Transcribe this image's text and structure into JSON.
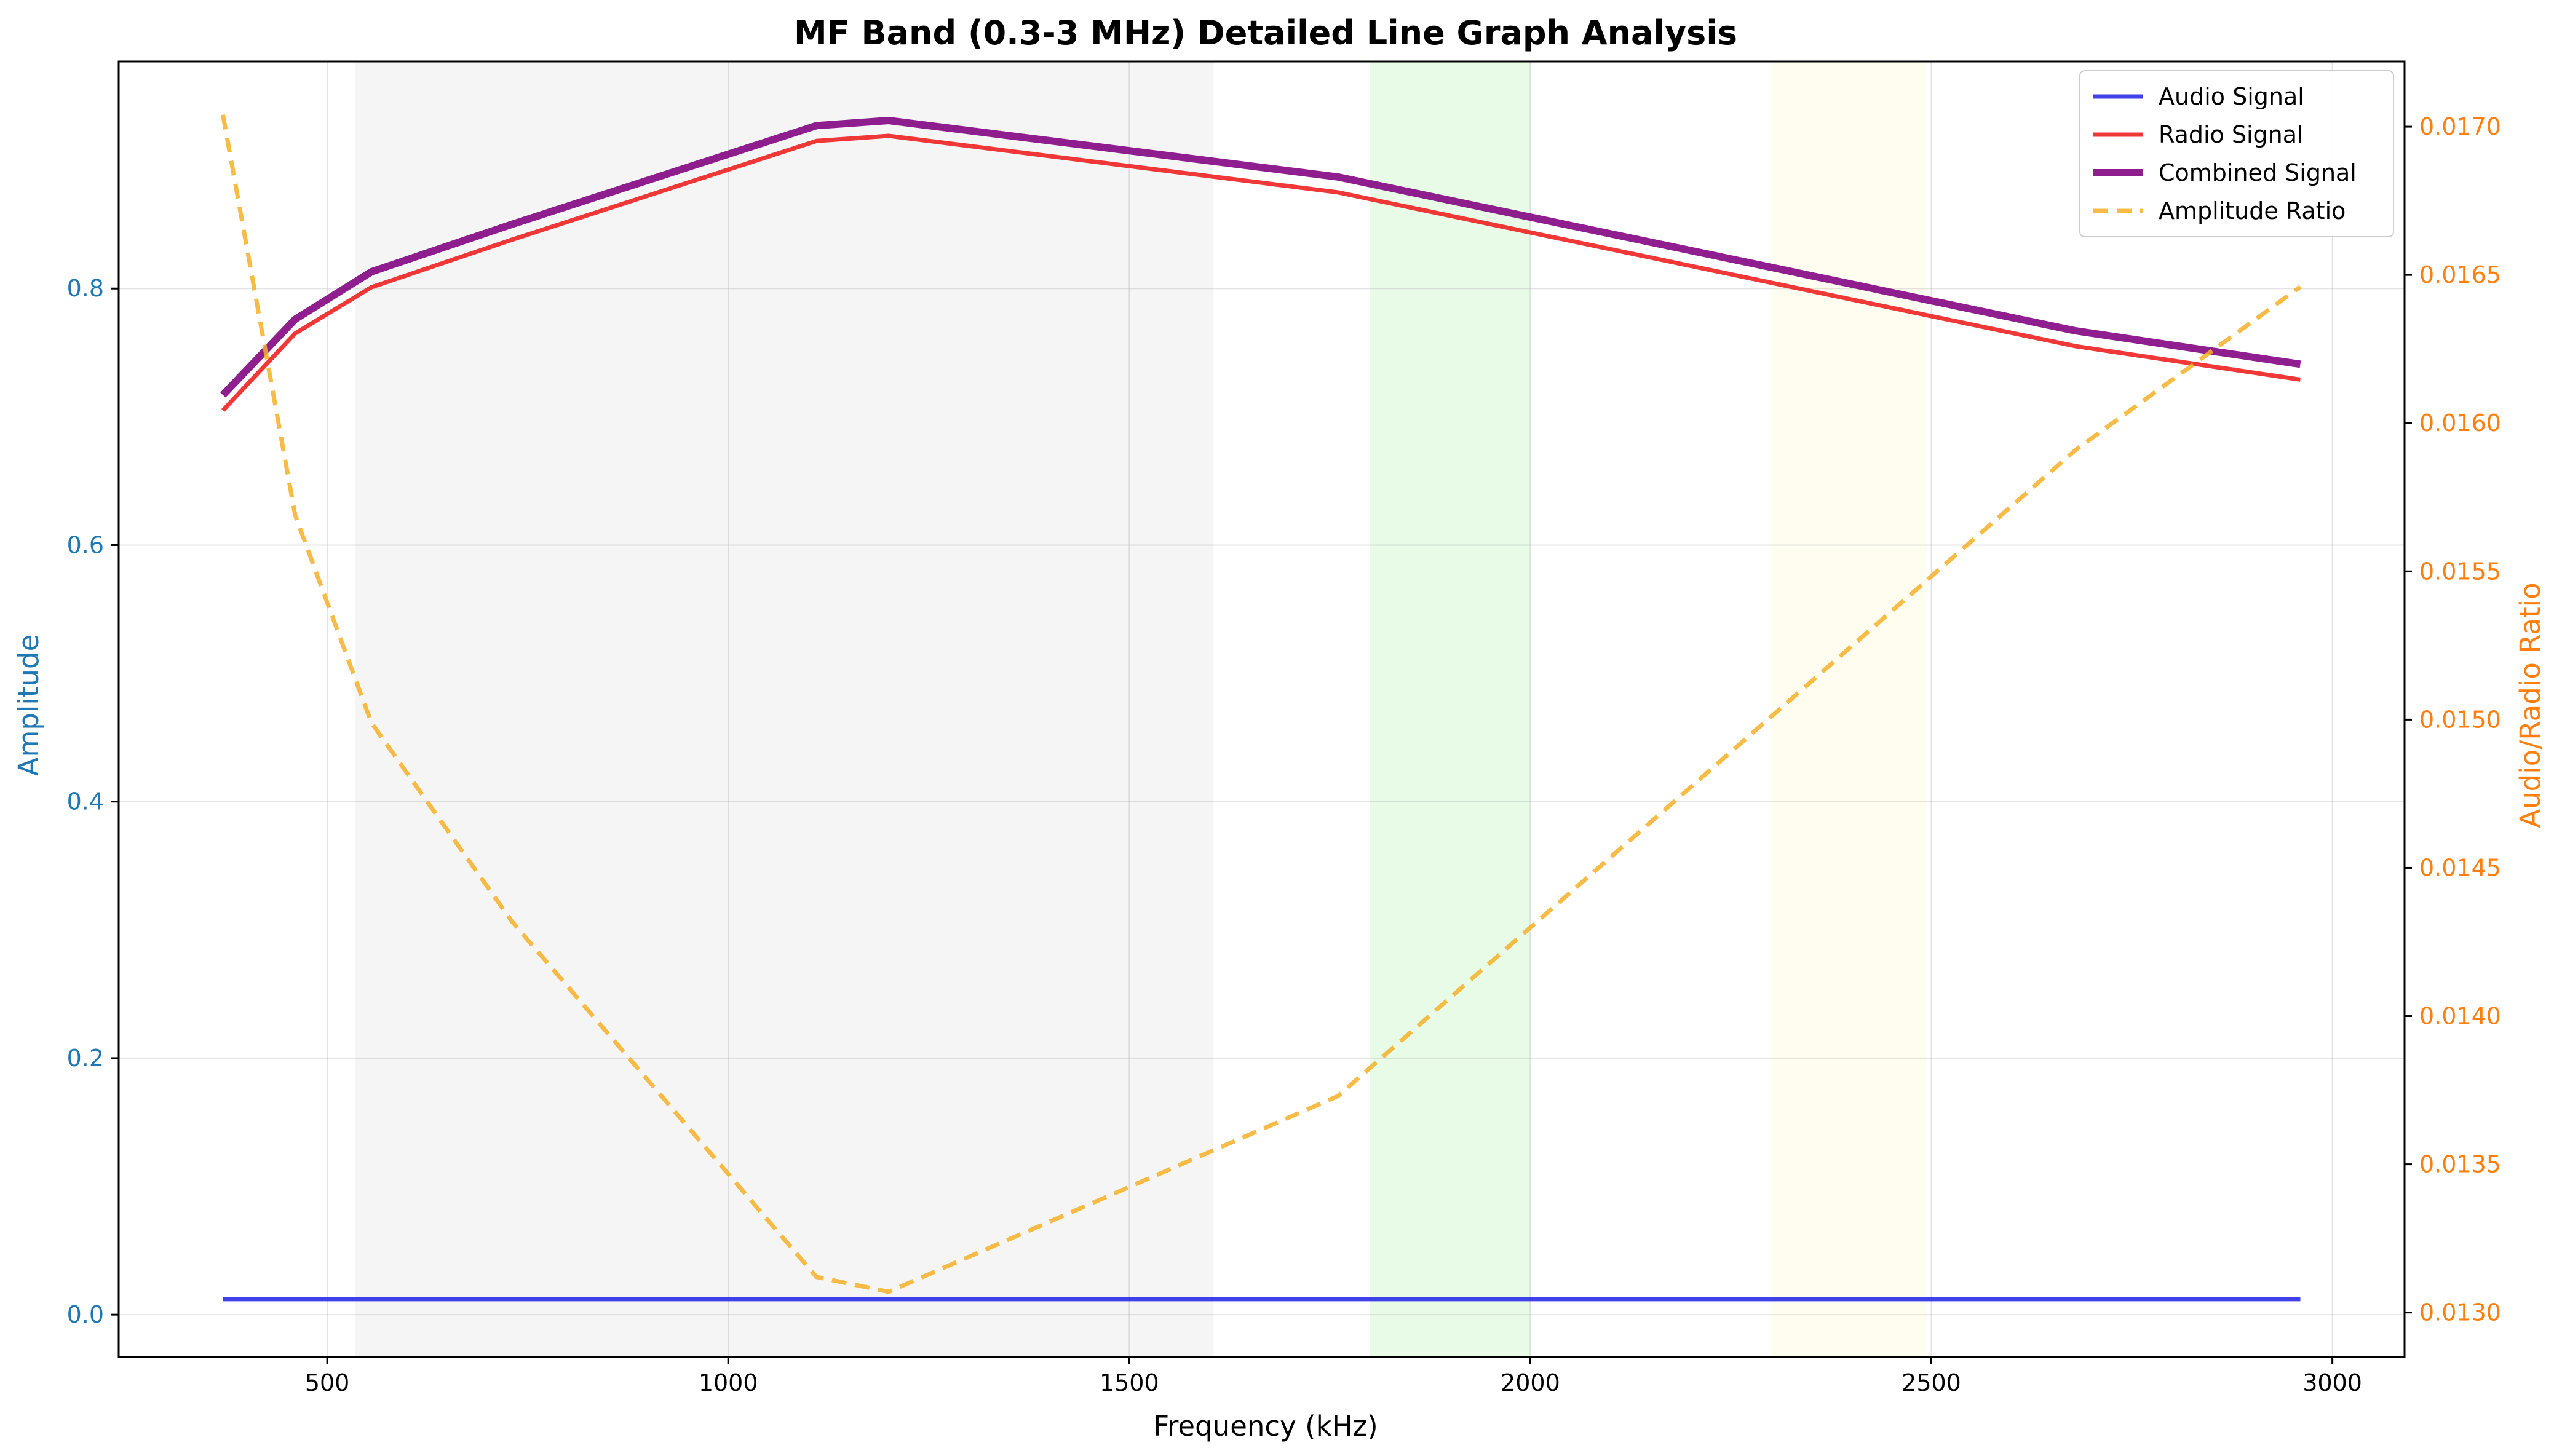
{
  "chart_data": {
    "type": "line",
    "title": "MF Band (0.3-3 MHz) Detailed Line Graph Analysis",
    "xlabel": "Frequency (kHz)",
    "ylabel": "Amplitude",
    "y2label": "Audio/Radio Ratio",
    "xlim": [
      240,
      3090
    ],
    "ylim": [
      -0.033,
      0.977
    ],
    "y2lim": [
      0.01285,
      0.01722
    ],
    "xticks": [
      500,
      1000,
      1500,
      2000,
      2500,
      3000
    ],
    "yticks": [
      0.0,
      0.2,
      0.4,
      0.6,
      0.8
    ],
    "y2ticks": [
      0.013,
      0.0135,
      0.014,
      0.0145,
      0.015,
      0.0155,
      0.016,
      0.0165,
      0.017
    ],
    "ytick_labels": [
      "0.0",
      "0.2",
      "0.4",
      "0.6",
      "0.8"
    ],
    "y2tick_labels": [
      "0.0130",
      "0.0135",
      "0.0140",
      "0.0145",
      "0.0150",
      "0.0155",
      "0.0160",
      "0.0165",
      "0.0170"
    ],
    "grid": true,
    "legend_position": "top-right",
    "shaded_bands": [
      {
        "x0": 535,
        "x1": 1605,
        "color": "#d9d9d9",
        "opacity": 0.25
      },
      {
        "x0": 1800,
        "x1": 2000,
        "color": "#90ee90",
        "opacity": 0.22
      },
      {
        "x0": 2300,
        "x1": 2495,
        "color": "#fffacd",
        "opacity": 0.3
      }
    ],
    "x": [
      370,
      460,
      555,
      730,
      1110,
      1200,
      1760,
      2680,
      2960
    ],
    "series": [
      {
        "name": "Audio Signal",
        "axis": "left",
        "color": "#2020e6",
        "width": 7,
        "dash": "",
        "opacity": 0.85,
        "values": [
          0.0121,
          0.0121,
          0.0121,
          0.0121,
          0.0121,
          0.0121,
          0.0121,
          0.0121,
          0.0121
        ]
      },
      {
        "name": "Radio Signal",
        "axis": "left",
        "color": "#ee2222",
        "width": 7,
        "dash": "",
        "opacity": 0.9,
        "values": [
          0.705,
          0.765,
          0.801,
          0.838,
          0.915,
          0.919,
          0.875,
          0.755,
          0.729
        ]
      },
      {
        "name": "Combined Signal",
        "axis": "left",
        "color": "#800080",
        "width": 12,
        "dash": "",
        "opacity": 0.88,
        "values": [
          0.717,
          0.776,
          0.813,
          0.85,
          0.927,
          0.931,
          0.887,
          0.767,
          0.741
        ]
      },
      {
        "name": "Amplitude Ratio",
        "axis": "right",
        "color": "#f5b027",
        "width": 7,
        "dash": "24,14",
        "opacity": 0.85,
        "values": [
          0.01704,
          0.01569,
          0.01499,
          0.01432,
          0.01312,
          0.01307,
          0.01373,
          0.01591,
          0.01646
        ]
      }
    ]
  }
}
